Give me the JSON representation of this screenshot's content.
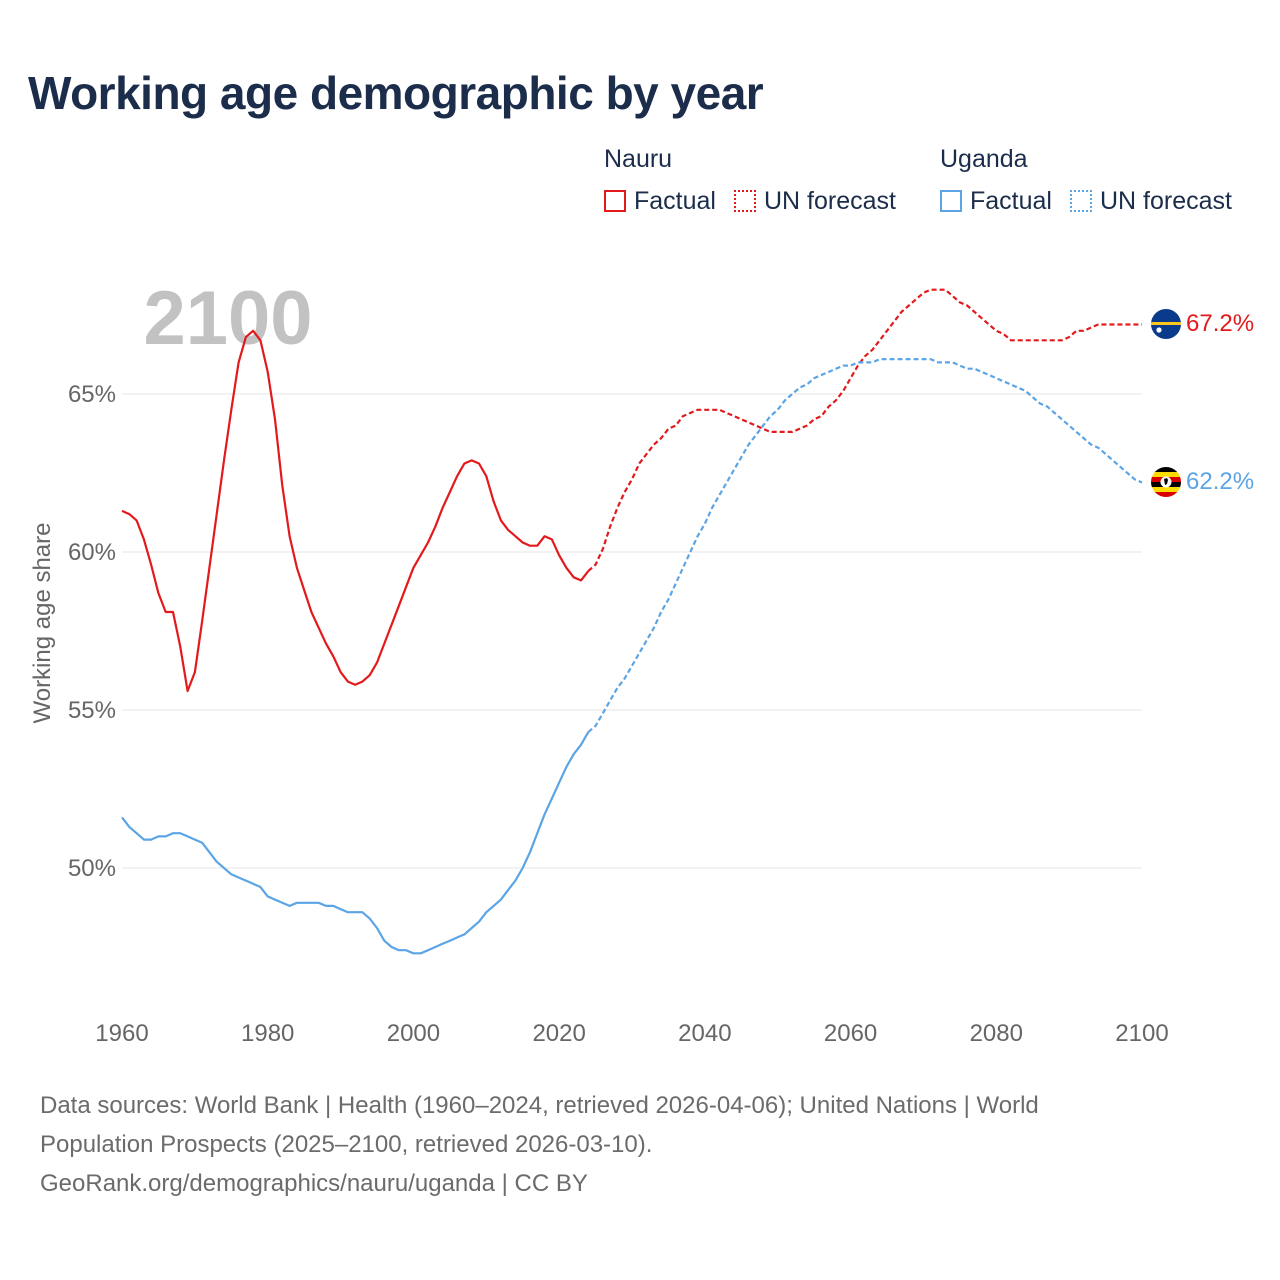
{
  "title": "Working age demographic by year",
  "legend": {
    "groups": [
      {
        "name": "Nauru",
        "color": "#e31a1c",
        "factual_label": "Factual",
        "forecast_label": "UN forecast"
      },
      {
        "name": "Uganda",
        "color": "#5ba4e5",
        "factual_label": "Factual",
        "forecast_label": "UN forecast"
      }
    ]
  },
  "footer": {
    "line1": "Data sources: World Bank | Health (1960–2024, retrieved 2026-04-06); United Nations | World",
    "line2": "Population Prospects (2025–2100, retrieved 2026-03-10).",
    "line3": "GeoRank.org/demographics/nauru/uganda | CC BY"
  },
  "chart_data": {
    "type": "line",
    "title": "Working age demographic by year",
    "xlabel": "",
    "ylabel": "Working age share",
    "year_watermark": "2100",
    "xlim": [
      1960,
      2100
    ],
    "ylim": [
      46,
      69
    ],
    "x_ticks": [
      1960,
      1980,
      2000,
      2020,
      2040,
      2060,
      2080,
      2100
    ],
    "y_ticks": [
      50,
      55,
      60,
      65
    ],
    "y_tick_labels": [
      "50%",
      "55%",
      "60%",
      "65%"
    ],
    "grid": "horizontal",
    "factual_range": [
      1960,
      2024
    ],
    "forecast_range": [
      2024,
      2100
    ],
    "series": [
      {
        "name": "Nauru",
        "color": "#e31a1c",
        "end_label": "67.2%",
        "flag": "nauru",
        "points": [
          [
            1960,
            61.3
          ],
          [
            1961,
            61.2
          ],
          [
            1962,
            61.0
          ],
          [
            1963,
            60.4
          ],
          [
            1964,
            59.6
          ],
          [
            1965,
            58.7
          ],
          [
            1966,
            58.1
          ],
          [
            1967,
            58.1
          ],
          [
            1968,
            57.0
          ],
          [
            1969,
            55.6
          ],
          [
            1970,
            56.2
          ],
          [
            1971,
            57.8
          ],
          [
            1972,
            59.5
          ],
          [
            1973,
            61.2
          ],
          [
            1974,
            62.9
          ],
          [
            1975,
            64.5
          ],
          [
            1976,
            66.0
          ],
          [
            1977,
            66.8
          ],
          [
            1978,
            67.0
          ],
          [
            1979,
            66.7
          ],
          [
            1980,
            65.7
          ],
          [
            1981,
            64.2
          ],
          [
            1982,
            62.1
          ],
          [
            1983,
            60.5
          ],
          [
            1984,
            59.5
          ],
          [
            1985,
            58.8
          ],
          [
            1986,
            58.1
          ],
          [
            1987,
            57.6
          ],
          [
            1988,
            57.1
          ],
          [
            1989,
            56.7
          ],
          [
            1990,
            56.2
          ],
          [
            1991,
            55.9
          ],
          [
            1992,
            55.8
          ],
          [
            1993,
            55.9
          ],
          [
            1994,
            56.1
          ],
          [
            1995,
            56.5
          ],
          [
            1996,
            57.1
          ],
          [
            1997,
            57.7
          ],
          [
            1998,
            58.3
          ],
          [
            1999,
            58.9
          ],
          [
            2000,
            59.5
          ],
          [
            2001,
            59.9
          ],
          [
            2002,
            60.3
          ],
          [
            2003,
            60.8
          ],
          [
            2004,
            61.4
          ],
          [
            2005,
            61.9
          ],
          [
            2006,
            62.4
          ],
          [
            2007,
            62.8
          ],
          [
            2008,
            62.9
          ],
          [
            2009,
            62.8
          ],
          [
            2010,
            62.4
          ],
          [
            2011,
            61.6
          ],
          [
            2012,
            61.0
          ],
          [
            2013,
            60.7
          ],
          [
            2014,
            60.5
          ],
          [
            2015,
            60.3
          ],
          [
            2016,
            60.2
          ],
          [
            2017,
            60.2
          ],
          [
            2018,
            60.5
          ],
          [
            2019,
            60.4
          ],
          [
            2020,
            59.9
          ],
          [
            2021,
            59.5
          ],
          [
            2022,
            59.2
          ],
          [
            2023,
            59.1
          ],
          [
            2024,
            59.4
          ],
          [
            2025,
            59.6
          ],
          [
            2026,
            60.1
          ],
          [
            2027,
            60.8
          ],
          [
            2028,
            61.4
          ],
          [
            2029,
            61.9
          ],
          [
            2030,
            62.3
          ],
          [
            2031,
            62.8
          ],
          [
            2032,
            63.1
          ],
          [
            2033,
            63.4
          ],
          [
            2034,
            63.6
          ],
          [
            2035,
            63.9
          ],
          [
            2036,
            64.0
          ],
          [
            2037,
            64.3
          ],
          [
            2038,
            64.4
          ],
          [
            2039,
            64.5
          ],
          [
            2040,
            64.5
          ],
          [
            2041,
            64.5
          ],
          [
            2042,
            64.5
          ],
          [
            2043,
            64.4
          ],
          [
            2044,
            64.3
          ],
          [
            2045,
            64.2
          ],
          [
            2046,
            64.1
          ],
          [
            2047,
            64.0
          ],
          [
            2048,
            63.9
          ],
          [
            2049,
            63.8
          ],
          [
            2050,
            63.8
          ],
          [
            2051,
            63.8
          ],
          [
            2052,
            63.8
          ],
          [
            2053,
            63.9
          ],
          [
            2054,
            64.0
          ],
          [
            2055,
            64.2
          ],
          [
            2056,
            64.3
          ],
          [
            2057,
            64.6
          ],
          [
            2058,
            64.8
          ],
          [
            2059,
            65.1
          ],
          [
            2060,
            65.5
          ],
          [
            2061,
            65.9
          ],
          [
            2062,
            66.2
          ],
          [
            2063,
            66.4
          ],
          [
            2064,
            66.7
          ],
          [
            2065,
            67.0
          ],
          [
            2066,
            67.3
          ],
          [
            2067,
            67.6
          ],
          [
            2068,
            67.8
          ],
          [
            2069,
            68.0
          ],
          [
            2070,
            68.2
          ],
          [
            2071,
            68.3
          ],
          [
            2072,
            68.3
          ],
          [
            2073,
            68.3
          ],
          [
            2074,
            68.1
          ],
          [
            2075,
            67.9
          ],
          [
            2076,
            67.8
          ],
          [
            2077,
            67.6
          ],
          [
            2078,
            67.4
          ],
          [
            2079,
            67.2
          ],
          [
            2080,
            67.0
          ],
          [
            2081,
            66.9
          ],
          [
            2082,
            66.7
          ],
          [
            2083,
            66.7
          ],
          [
            2084,
            66.7
          ],
          [
            2085,
            66.7
          ],
          [
            2086,
            66.7
          ],
          [
            2087,
            66.7
          ],
          [
            2088,
            66.7
          ],
          [
            2089,
            66.7
          ],
          [
            2090,
            66.8
          ],
          [
            2091,
            67.0
          ],
          [
            2092,
            67.0
          ],
          [
            2093,
            67.1
          ],
          [
            2094,
            67.2
          ],
          [
            2095,
            67.2
          ],
          [
            2096,
            67.2
          ],
          [
            2097,
            67.2
          ],
          [
            2098,
            67.2
          ],
          [
            2099,
            67.2
          ],
          [
            2100,
            67.2
          ]
        ]
      },
      {
        "name": "Uganda",
        "color": "#5ba4e5",
        "end_label": "62.2%",
        "flag": "uganda",
        "points": [
          [
            1960,
            51.6
          ],
          [
            1961,
            51.3
          ],
          [
            1962,
            51.1
          ],
          [
            1963,
            50.9
          ],
          [
            1964,
            50.9
          ],
          [
            1965,
            51.0
          ],
          [
            1966,
            51.0
          ],
          [
            1967,
            51.1
          ],
          [
            1968,
            51.1
          ],
          [
            1969,
            51.0
          ],
          [
            1970,
            50.9
          ],
          [
            1971,
            50.8
          ],
          [
            1972,
            50.5
          ],
          [
            1973,
            50.2
          ],
          [
            1974,
            50.0
          ],
          [
            1975,
            49.8
          ],
          [
            1976,
            49.7
          ],
          [
            1977,
            49.6
          ],
          [
            1978,
            49.5
          ],
          [
            1979,
            49.4
          ],
          [
            1980,
            49.1
          ],
          [
            1981,
            49.0
          ],
          [
            1982,
            48.9
          ],
          [
            1983,
            48.8
          ],
          [
            1984,
            48.9
          ],
          [
            1985,
            48.9
          ],
          [
            1986,
            48.9
          ],
          [
            1987,
            48.9
          ],
          [
            1988,
            48.8
          ],
          [
            1989,
            48.8
          ],
          [
            1990,
            48.7
          ],
          [
            1991,
            48.6
          ],
          [
            1992,
            48.6
          ],
          [
            1993,
            48.6
          ],
          [
            1994,
            48.4
          ],
          [
            1995,
            48.1
          ],
          [
            1996,
            47.7
          ],
          [
            1997,
            47.5
          ],
          [
            1998,
            47.4
          ],
          [
            1999,
            47.4
          ],
          [
            2000,
            47.3
          ],
          [
            2001,
            47.3
          ],
          [
            2002,
            47.4
          ],
          [
            2003,
            47.5
          ],
          [
            2004,
            47.6
          ],
          [
            2005,
            47.7
          ],
          [
            2006,
            47.8
          ],
          [
            2007,
            47.9
          ],
          [
            2008,
            48.1
          ],
          [
            2009,
            48.3
          ],
          [
            2010,
            48.6
          ],
          [
            2011,
            48.8
          ],
          [
            2012,
            49.0
          ],
          [
            2013,
            49.3
          ],
          [
            2014,
            49.6
          ],
          [
            2015,
            50.0
          ],
          [
            2016,
            50.5
          ],
          [
            2017,
            51.1
          ],
          [
            2018,
            51.7
          ],
          [
            2019,
            52.2
          ],
          [
            2020,
            52.7
          ],
          [
            2021,
            53.2
          ],
          [
            2022,
            53.6
          ],
          [
            2023,
            53.9
          ],
          [
            2024,
            54.3
          ],
          [
            2025,
            54.5
          ],
          [
            2026,
            54.9
          ],
          [
            2027,
            55.3
          ],
          [
            2028,
            55.7
          ],
          [
            2029,
            56.0
          ],
          [
            2030,
            56.4
          ],
          [
            2031,
            56.8
          ],
          [
            2032,
            57.2
          ],
          [
            2033,
            57.6
          ],
          [
            2034,
            58.1
          ],
          [
            2035,
            58.5
          ],
          [
            2036,
            59.0
          ],
          [
            2037,
            59.5
          ],
          [
            2038,
            60.0
          ],
          [
            2039,
            60.5
          ],
          [
            2040,
            60.9
          ],
          [
            2041,
            61.4
          ],
          [
            2042,
            61.8
          ],
          [
            2043,
            62.2
          ],
          [
            2044,
            62.6
          ],
          [
            2045,
            63.0
          ],
          [
            2046,
            63.4
          ],
          [
            2047,
            63.7
          ],
          [
            2048,
            64.0
          ],
          [
            2049,
            64.3
          ],
          [
            2050,
            64.5
          ],
          [
            2051,
            64.8
          ],
          [
            2052,
            65.0
          ],
          [
            2053,
            65.2
          ],
          [
            2054,
            65.3
          ],
          [
            2055,
            65.5
          ],
          [
            2056,
            65.6
          ],
          [
            2057,
            65.7
          ],
          [
            2058,
            65.8
          ],
          [
            2059,
            65.9
          ],
          [
            2060,
            65.9
          ],
          [
            2061,
            66.0
          ],
          [
            2062,
            66.0
          ],
          [
            2063,
            66.0
          ],
          [
            2064,
            66.1
          ],
          [
            2065,
            66.1
          ],
          [
            2066,
            66.1
          ],
          [
            2067,
            66.1
          ],
          [
            2068,
            66.1
          ],
          [
            2069,
            66.1
          ],
          [
            2070,
            66.1
          ],
          [
            2071,
            66.1
          ],
          [
            2072,
            66.0
          ],
          [
            2073,
            66.0
          ],
          [
            2074,
            66.0
          ],
          [
            2075,
            65.9
          ],
          [
            2076,
            65.8
          ],
          [
            2077,
            65.8
          ],
          [
            2078,
            65.7
          ],
          [
            2079,
            65.6
          ],
          [
            2080,
            65.5
          ],
          [
            2081,
            65.4
          ],
          [
            2082,
            65.3
          ],
          [
            2083,
            65.2
          ],
          [
            2084,
            65.1
          ],
          [
            2085,
            64.9
          ],
          [
            2086,
            64.7
          ],
          [
            2087,
            64.6
          ],
          [
            2088,
            64.4
          ],
          [
            2089,
            64.2
          ],
          [
            2090,
            64.0
          ],
          [
            2091,
            63.8
          ],
          [
            2092,
            63.6
          ],
          [
            2093,
            63.4
          ],
          [
            2094,
            63.3
          ],
          [
            2095,
            63.1
          ],
          [
            2096,
            62.9
          ],
          [
            2097,
            62.7
          ],
          [
            2098,
            62.5
          ],
          [
            2099,
            62.3
          ],
          [
            2100,
            62.2
          ]
        ]
      }
    ]
  }
}
